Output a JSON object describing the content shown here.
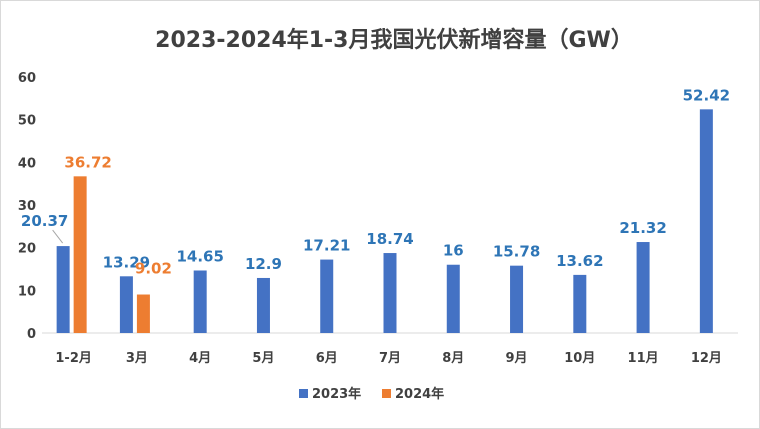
{
  "chart_data": {
    "type": "bar",
    "title": "2023-2024年1-3月我国光伏新增容量（GW）",
    "categories": [
      "1-2月",
      "3月",
      "4月",
      "5月",
      "6月",
      "7月",
      "8月",
      "9月",
      "10月",
      "11月",
      "12月"
    ],
    "series": [
      {
        "name": "2023年",
        "color": "#4472C4",
        "values": [
          20.37,
          13.29,
          14.65,
          12.9,
          17.21,
          18.74,
          16,
          15.78,
          13.62,
          21.32,
          52.42
        ]
      },
      {
        "name": "2024年",
        "color": "#ED7D31",
        "values": [
          36.72,
          9.02,
          null,
          null,
          null,
          null,
          null,
          null,
          null,
          null,
          null
        ]
      }
    ],
    "data_labels": {
      "2023年": [
        "20.37",
        "13.29",
        "14.65",
        "12.9",
        "17.21",
        "18.74",
        "16",
        "15.78",
        "13.62",
        "21.32",
        "52.42"
      ],
      "2024年": [
        "36.72",
        "9.02",
        "",
        "",
        "",
        "",
        "",
        "",
        "",
        "",
        ""
      ]
    },
    "ylim": [
      0,
      60
    ],
    "yticks": [
      "0",
      "10",
      "20",
      "30",
      "40",
      "50",
      "60"
    ],
    "grid": "none",
    "legend": "bottom",
    "xlabel": "",
    "ylabel": ""
  }
}
